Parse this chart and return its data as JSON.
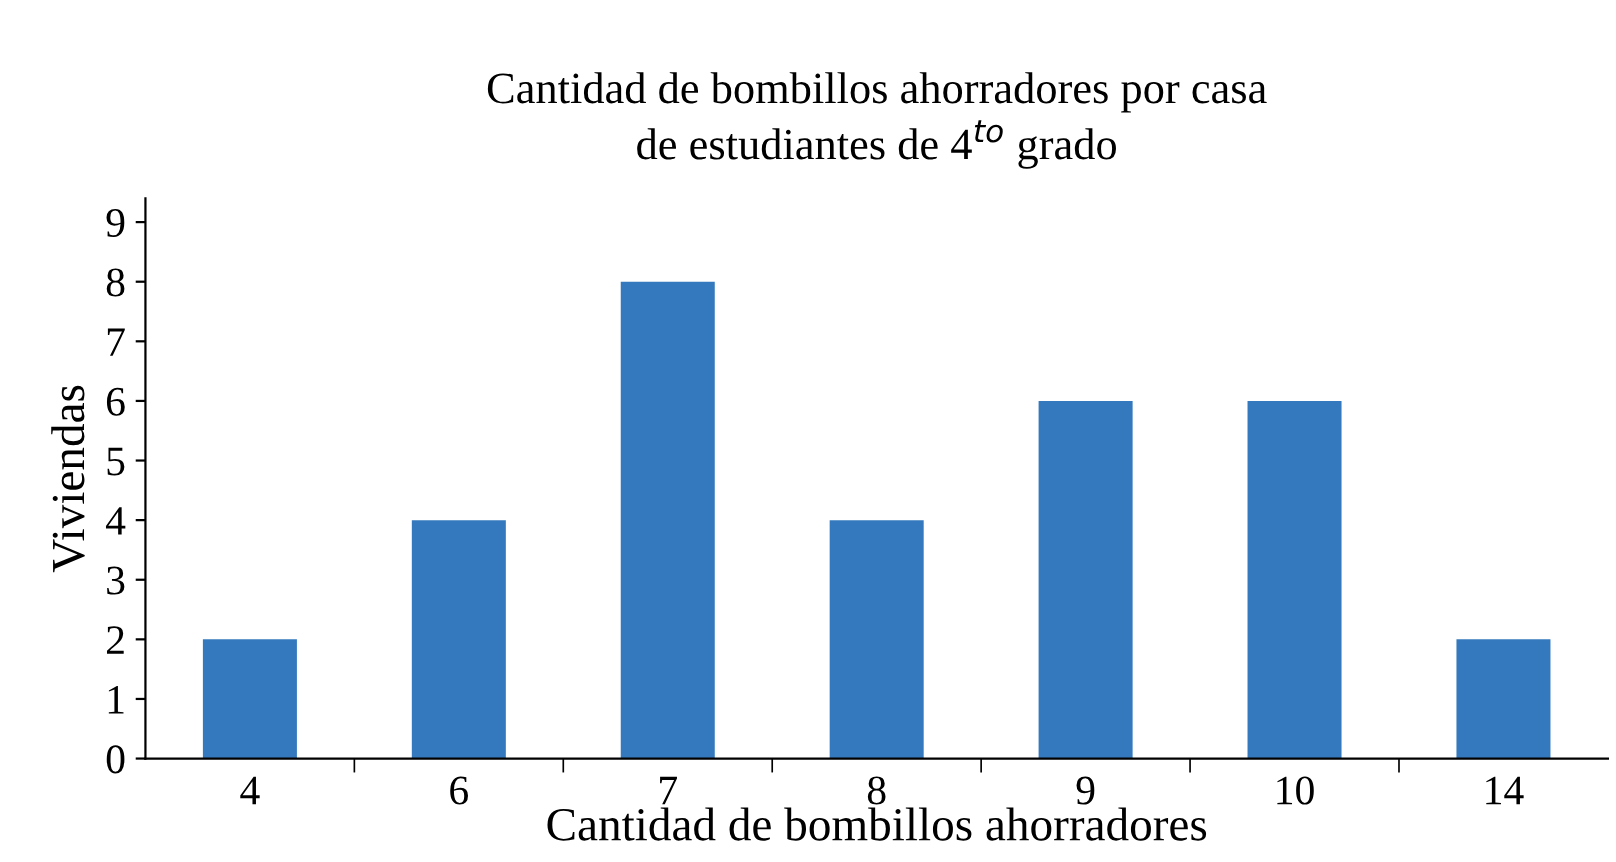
{
  "chart_data": {
    "type": "bar",
    "title": "Cantidad de bombillos ahorradores por casa\nde estudiantes de 4$^{to}$ grado",
    "xlabel": "Cantidad de bombillos ahorradores",
    "ylabel": "Viviendas",
    "categories": [
      "4",
      "6",
      "7",
      "8",
      "9",
      "10",
      "14"
    ],
    "values": [
      2,
      4,
      8,
      4,
      6,
      6,
      2
    ],
    "color": "#3479bd",
    "ylim": [
      0,
      9.4
    ],
    "yticks": [
      0,
      1,
      2,
      3,
      4,
      5,
      6,
      7,
      8,
      9
    ],
    "grid": false
  }
}
